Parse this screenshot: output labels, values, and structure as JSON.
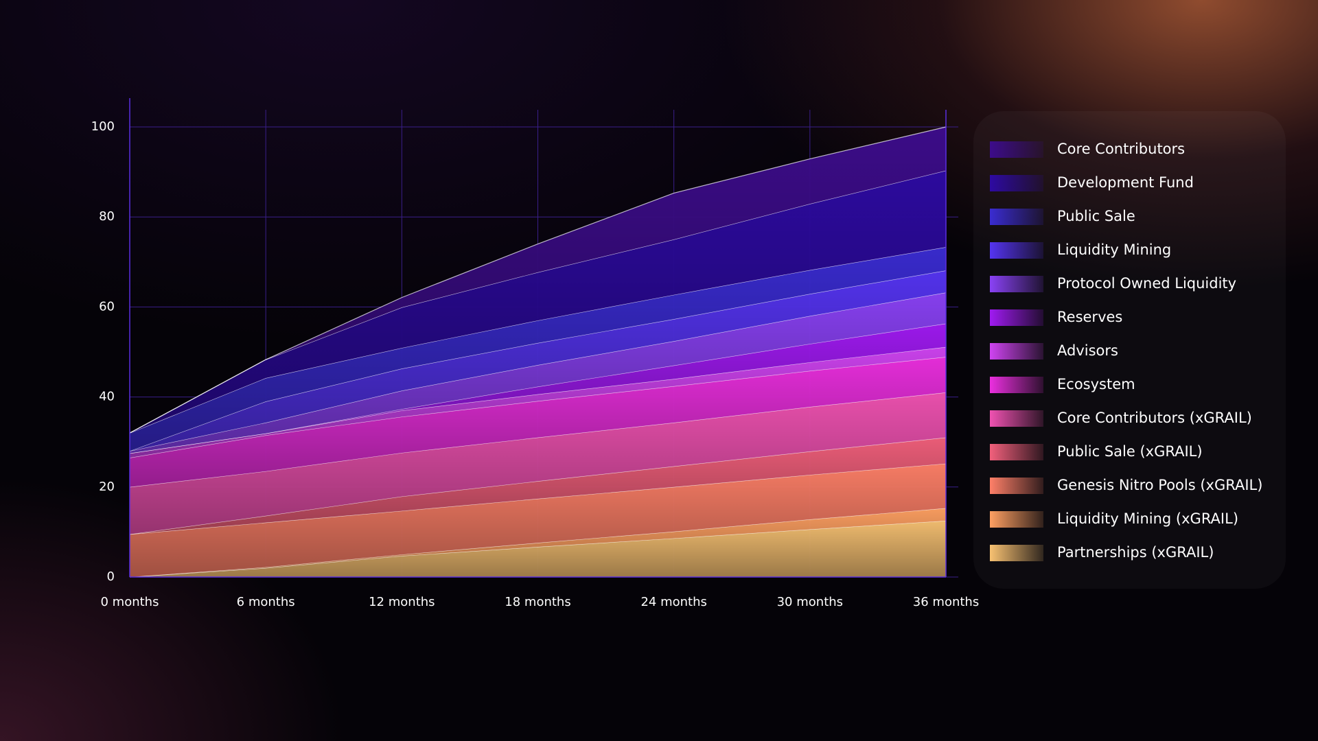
{
  "chart_data": {
    "type": "stacked-area",
    "categories": [
      "0 months",
      "6 months",
      "12 months",
      "18 months",
      "24 months",
      "30 months",
      "36 months"
    ],
    "ylim": [
      0,
      100
    ],
    "yticks": [
      0,
      20,
      40,
      60,
      80,
      100
    ],
    "grid": true,
    "legend": "right",
    "series": [
      {
        "name": "Core Contributors",
        "color": "#3d0c8c",
        "values": [
          0,
          0,
          2.2,
          6.3,
          10.3,
          10,
          9.7
        ]
      },
      {
        "name": "Development Fund",
        "color": "#2e0aa3",
        "values": [
          0,
          4.1,
          9,
          10.7,
          12.3,
          14.7,
          17
        ]
      },
      {
        "name": "Public Sale",
        "color": "#3a2cd2",
        "values": [
          4,
          5.2,
          4.6,
          5,
          5.4,
          5.3,
          5.2
        ]
      },
      {
        "name": "Liquidity Mining",
        "color": "#5534f2",
        "values": [
          0,
          4.7,
          4.9,
          4.9,
          4.9,
          4.9,
          4.9
        ]
      },
      {
        "name": "Protocol Owned Liquidity",
        "color": "#8a42f6",
        "values": [
          0.5,
          2.4,
          4.1,
          4.8,
          5.4,
          6.2,
          6.9
        ]
      },
      {
        "name": "Reserves",
        "color": "#a01af2",
        "values": [
          0,
          0,
          0.3,
          1.7,
          3,
          4.1,
          5.2
        ]
      },
      {
        "name": "Advisors",
        "color": "#d044f2",
        "values": [
          1,
          0.4,
          1.4,
          1.5,
          1.6,
          1.9,
          2.2
        ]
      },
      {
        "name": "Ecosystem",
        "color": "#ec2fe0",
        "values": [
          6.5,
          8,
          8,
          8.1,
          8.1,
          8,
          7.9
        ]
      },
      {
        "name": "Core Contributors (xGRAIL)",
        "color": "#f052b2",
        "values": [
          10.5,
          9.9,
          9.7,
          9.7,
          9.7,
          9.9,
          10
        ]
      },
      {
        "name": "Public Sale (xGRAIL)",
        "color": "#f2607c",
        "values": [
          0,
          1.5,
          3.2,
          3.9,
          4.6,
          5.2,
          5.8
        ]
      },
      {
        "name": "Genesis Nitro Pools (xGRAIL)",
        "color": "#ff8068",
        "values": [
          9.5,
          9.9,
          9.7,
          9.8,
          9.9,
          9.9,
          9.9
        ]
      },
      {
        "name": "Liquidity Mining (xGRAIL)",
        "color": "#ffa062",
        "values": [
          0,
          0.2,
          0.3,
          0.9,
          1.5,
          2.2,
          2.8
        ]
      },
      {
        "name": "Partnerships (xGRAIL)",
        "color": "#f8c272",
        "values": [
          0,
          2,
          4.7,
          6.7,
          8.6,
          10.6,
          12.5
        ]
      }
    ]
  }
}
